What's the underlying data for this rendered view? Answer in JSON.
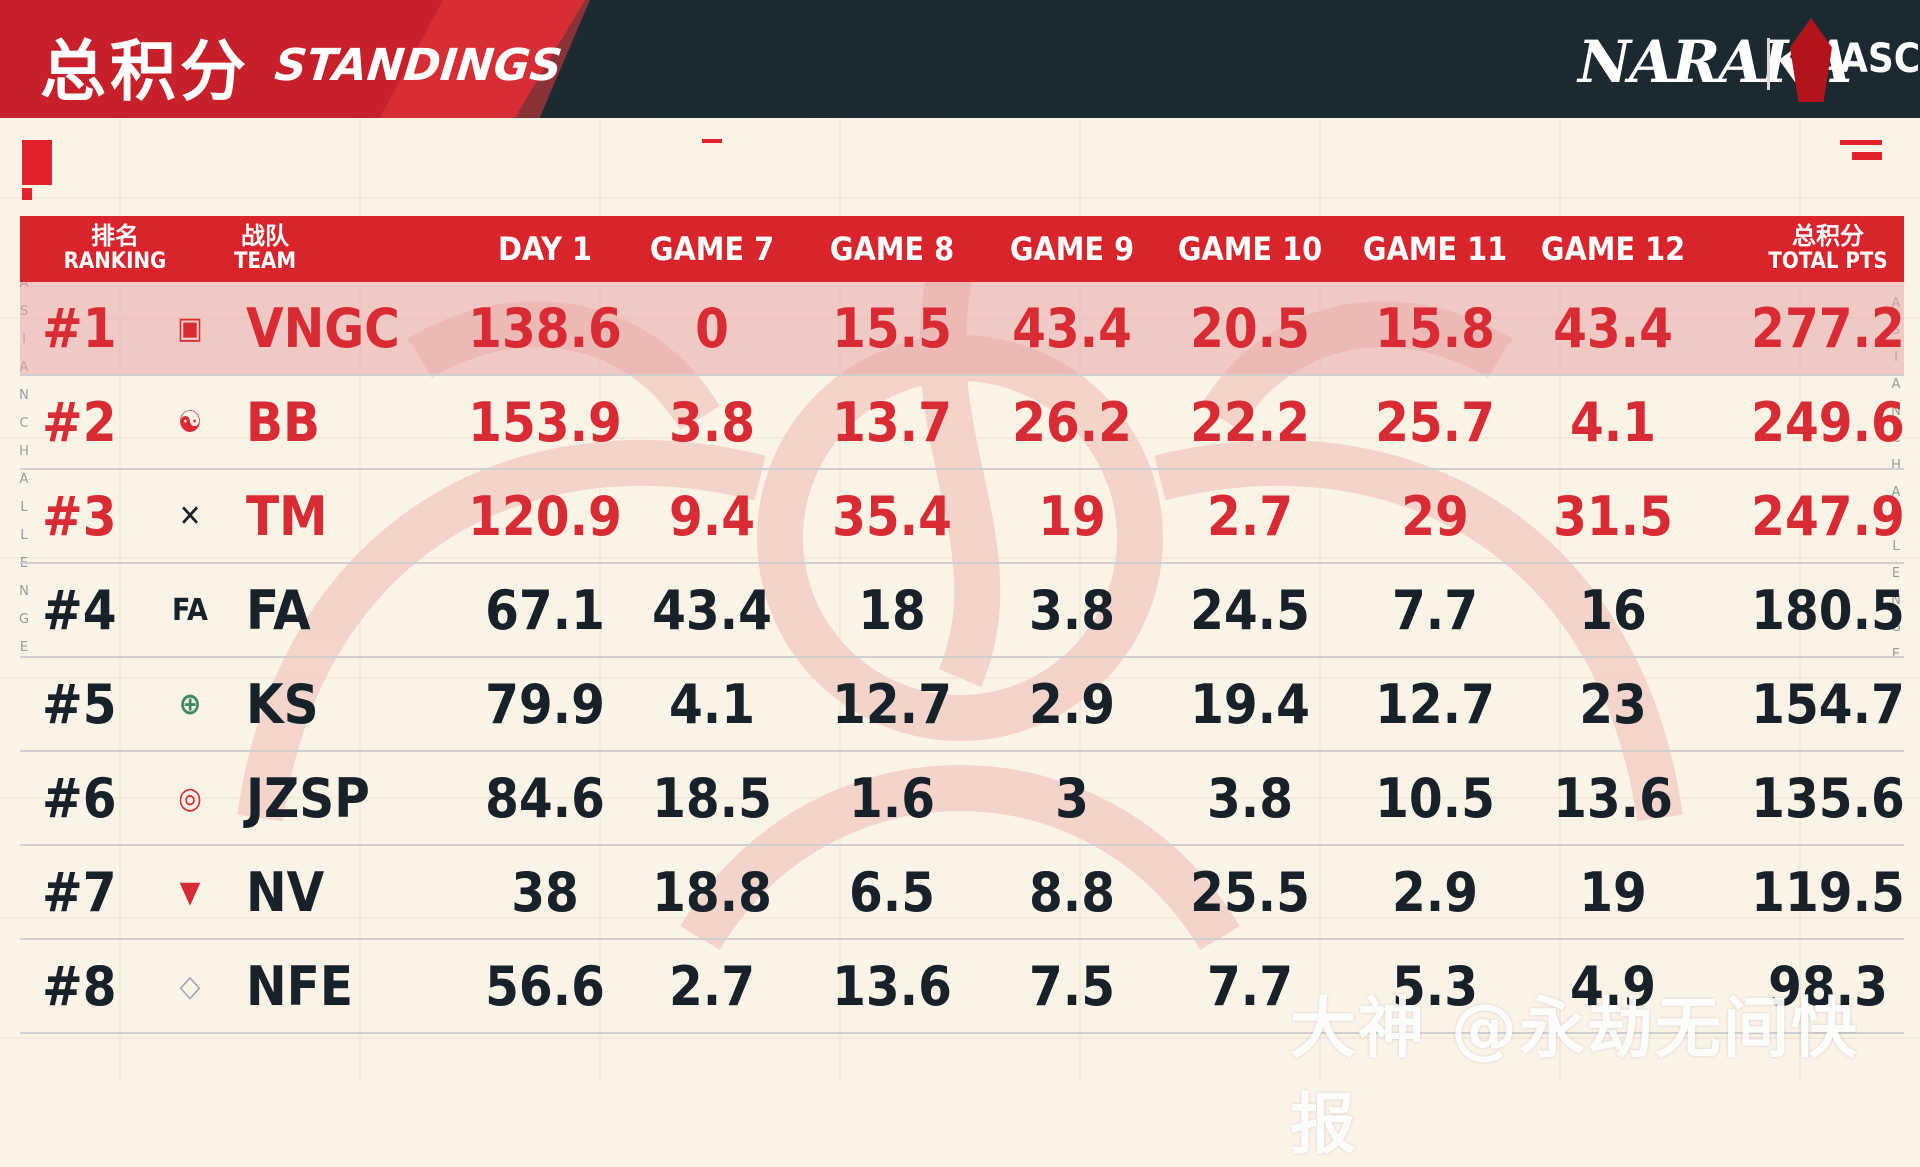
{
  "header": {
    "title_cn": "总积分",
    "title_en": "STANDINGS",
    "brand": "NARAKA",
    "event_badge": "ASC"
  },
  "side_text": {
    "left": [
      "A",
      "S",
      "I",
      "A",
      "N",
      "C",
      "H",
      "A",
      "L",
      "L",
      "E",
      "N",
      "G",
      "E"
    ],
    "right": [
      "A",
      "S",
      "I",
      "A",
      "N",
      "C",
      "H",
      "A",
      "L",
      "L",
      "E",
      "N",
      "G",
      "E"
    ]
  },
  "table": {
    "headers": {
      "rank_cn": "排名",
      "rank_en": "RANKING",
      "team_cn": "战队",
      "team_en": "TEAM",
      "day1": "DAY 1",
      "g7": "GAME 7",
      "g8": "GAME 8",
      "g9": "GAME 9",
      "g10": "GAME 10",
      "g11": "GAME 11",
      "g12": "GAME 12",
      "total_cn": "总积分",
      "total_en": "TOTAL PTS"
    },
    "rows": [
      {
        "rank": "#1",
        "team": "VNGC",
        "day1": "138.6",
        "g7": "0",
        "g8": "15.5",
        "g9": "43.4",
        "g10": "20.5",
        "g11": "15.8",
        "g12": "43.4",
        "total": "277.2",
        "logo_icon": "vngc-logo",
        "logo_color": "#d82b33"
      },
      {
        "rank": "#2",
        "team": "BB",
        "day1": "153.9",
        "g7": "3.8",
        "g8": "13.7",
        "g9": "26.2",
        "g10": "22.2",
        "g11": "25.7",
        "g12": "4.1",
        "total": "249.6",
        "logo_icon": "bb-logo",
        "logo_color": "#d82b33"
      },
      {
        "rank": "#3",
        "team": "TM",
        "day1": "120.9",
        "g7": "9.4",
        "g8": "35.4",
        "g9": "19",
        "g10": "2.7",
        "g11": "29",
        "g12": "31.5",
        "total": "247.9",
        "logo_icon": "tm-logo",
        "logo_color": "#17212a"
      },
      {
        "rank": "#4",
        "team": "FA",
        "day1": "67.1",
        "g7": "43.4",
        "g8": "18",
        "g9": "3.8",
        "g10": "24.5",
        "g11": "7.7",
        "g12": "16",
        "total": "180.5",
        "logo_icon": "fa-logo",
        "logo_color": "#17212a"
      },
      {
        "rank": "#5",
        "team": "KS",
        "day1": "79.9",
        "g7": "4.1",
        "g8": "12.7",
        "g9": "2.9",
        "g10": "19.4",
        "g11": "12.7",
        "g12": "23",
        "total": "154.7",
        "logo_icon": "kingsman-logo",
        "logo_color": "#3d8a5c"
      },
      {
        "rank": "#6",
        "team": "JZSP",
        "day1": "84.6",
        "g7": "18.5",
        "g8": "1.6",
        "g9": "3",
        "g10": "3.8",
        "g11": "10.5",
        "g12": "13.6",
        "total": "135.6",
        "logo_icon": "jzsp-logo",
        "logo_color": "#d82b33"
      },
      {
        "rank": "#7",
        "team": "NV",
        "day1": "38",
        "g7": "18.8",
        "g8": "6.5",
        "g9": "8.8",
        "g10": "25.5",
        "g11": "2.9",
        "g12": "19",
        "total": "119.5",
        "logo_icon": "nv-logo",
        "logo_color": "#d82b33"
      },
      {
        "rank": "#8",
        "team": "NFE",
        "day1": "56.6",
        "g7": "2.7",
        "g8": "13.6",
        "g9": "7.5",
        "g10": "7.7",
        "g11": "5.3",
        "g12": "4.9",
        "total": "98.3",
        "logo_icon": "nfe-logo",
        "logo_color": "#9aa3b5"
      }
    ],
    "highlight_color": "#d82b33",
    "header_bg": "#d9242c"
  },
  "watermark": "大神 @永劫无间快报"
}
